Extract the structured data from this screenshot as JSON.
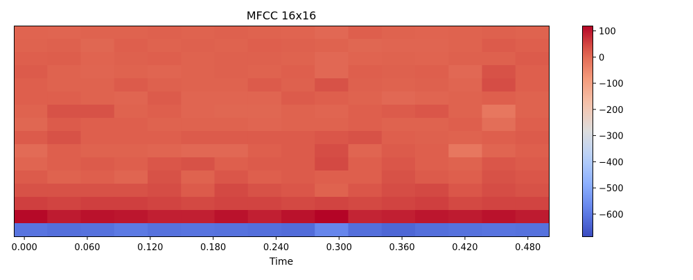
{
  "chart_data": {
    "type": "heatmap",
    "title": "MFCC 16x16",
    "xlabel": "Time",
    "ylabel": "",
    "x_ticks": [
      "0.000",
      "0.060",
      "0.120",
      "0.180",
      "0.240",
      "0.300",
      "0.360",
      "0.420",
      "0.480"
    ],
    "x_tick_values": [
      0.0,
      0.06,
      0.12,
      0.18,
      0.24,
      0.3,
      0.36,
      0.42,
      0.48
    ],
    "xlim": [
      -0.01,
      0.5
    ],
    "colorbar": {
      "cmap": "coolwarm",
      "vmin": -685,
      "vmax": 120,
      "ticks": [
        100,
        0,
        -100,
        -200,
        -300,
        -400,
        -500,
        -600
      ],
      "tick_labels": [
        "100",
        "0",
        "−100",
        "−200",
        "−300",
        "−400",
        "−500",
        "−600"
      ]
    },
    "rows_top_to_bottom": [
      [
        12,
        10,
        15,
        15,
        18,
        15,
        18,
        15,
        12,
        5,
        20,
        15,
        12,
        15,
        18,
        15
      ],
      [
        15,
        18,
        8,
        20,
        15,
        18,
        15,
        20,
        18,
        15,
        8,
        10,
        10,
        15,
        25,
        20
      ],
      [
        20,
        22,
        12,
        18,
        20,
        15,
        18,
        18,
        15,
        5,
        12,
        15,
        12,
        18,
        18,
        25
      ],
      [
        25,
        15,
        10,
        15,
        10,
        15,
        18,
        15,
        20,
        5,
        20,
        18,
        20,
        5,
        35,
        20
      ],
      [
        20,
        15,
        15,
        25,
        18,
        15,
        15,
        25,
        18,
        35,
        18,
        15,
        18,
        10,
        40,
        20
      ],
      [
        20,
        20,
        15,
        10,
        25,
        10,
        10,
        10,
        25,
        20,
        15,
        5,
        10,
        15,
        20,
        15
      ],
      [
        15,
        35,
        35,
        15,
        20,
        10,
        8,
        8,
        15,
        10,
        20,
        25,
        30,
        15,
        -20,
        15
      ],
      [
        8,
        25,
        20,
        20,
        15,
        15,
        15,
        10,
        15,
        15,
        20,
        15,
        15,
        20,
        -5,
        20
      ],
      [
        25,
        35,
        20,
        20,
        20,
        25,
        25,
        25,
        25,
        30,
        35,
        20,
        18,
        15,
        20,
        25
      ],
      [
        0,
        20,
        15,
        15,
        10,
        5,
        5,
        20,
        25,
        40,
        10,
        25,
        20,
        -20,
        10,
        20
      ],
      [
        10,
        20,
        25,
        20,
        30,
        35,
        20,
        25,
        25,
        45,
        20,
        30,
        20,
        15,
        30,
        25
      ],
      [
        25,
        15,
        20,
        10,
        35,
        15,
        30,
        20,
        25,
        20,
        20,
        35,
        25,
        20,
        35,
        30
      ],
      [
        35,
        35,
        35,
        35,
        40,
        25,
        45,
        35,
        30,
        15,
        30,
        40,
        45,
        30,
        40,
        35
      ],
      [
        55,
        50,
        55,
        55,
        50,
        45,
        50,
        50,
        45,
        50,
        45,
        50,
        55,
        45,
        50,
        50
      ],
      [
        115,
        95,
        105,
        100,
        90,
        90,
        105,
        90,
        105,
        120,
        85,
        90,
        100,
        95,
        105,
        95
      ],
      [
        -610,
        -620,
        -615,
        -600,
        -615,
        -610,
        -615,
        -620,
        -625,
        -575,
        -620,
        -635,
        -620,
        -615,
        -610,
        -615
      ]
    ]
  }
}
